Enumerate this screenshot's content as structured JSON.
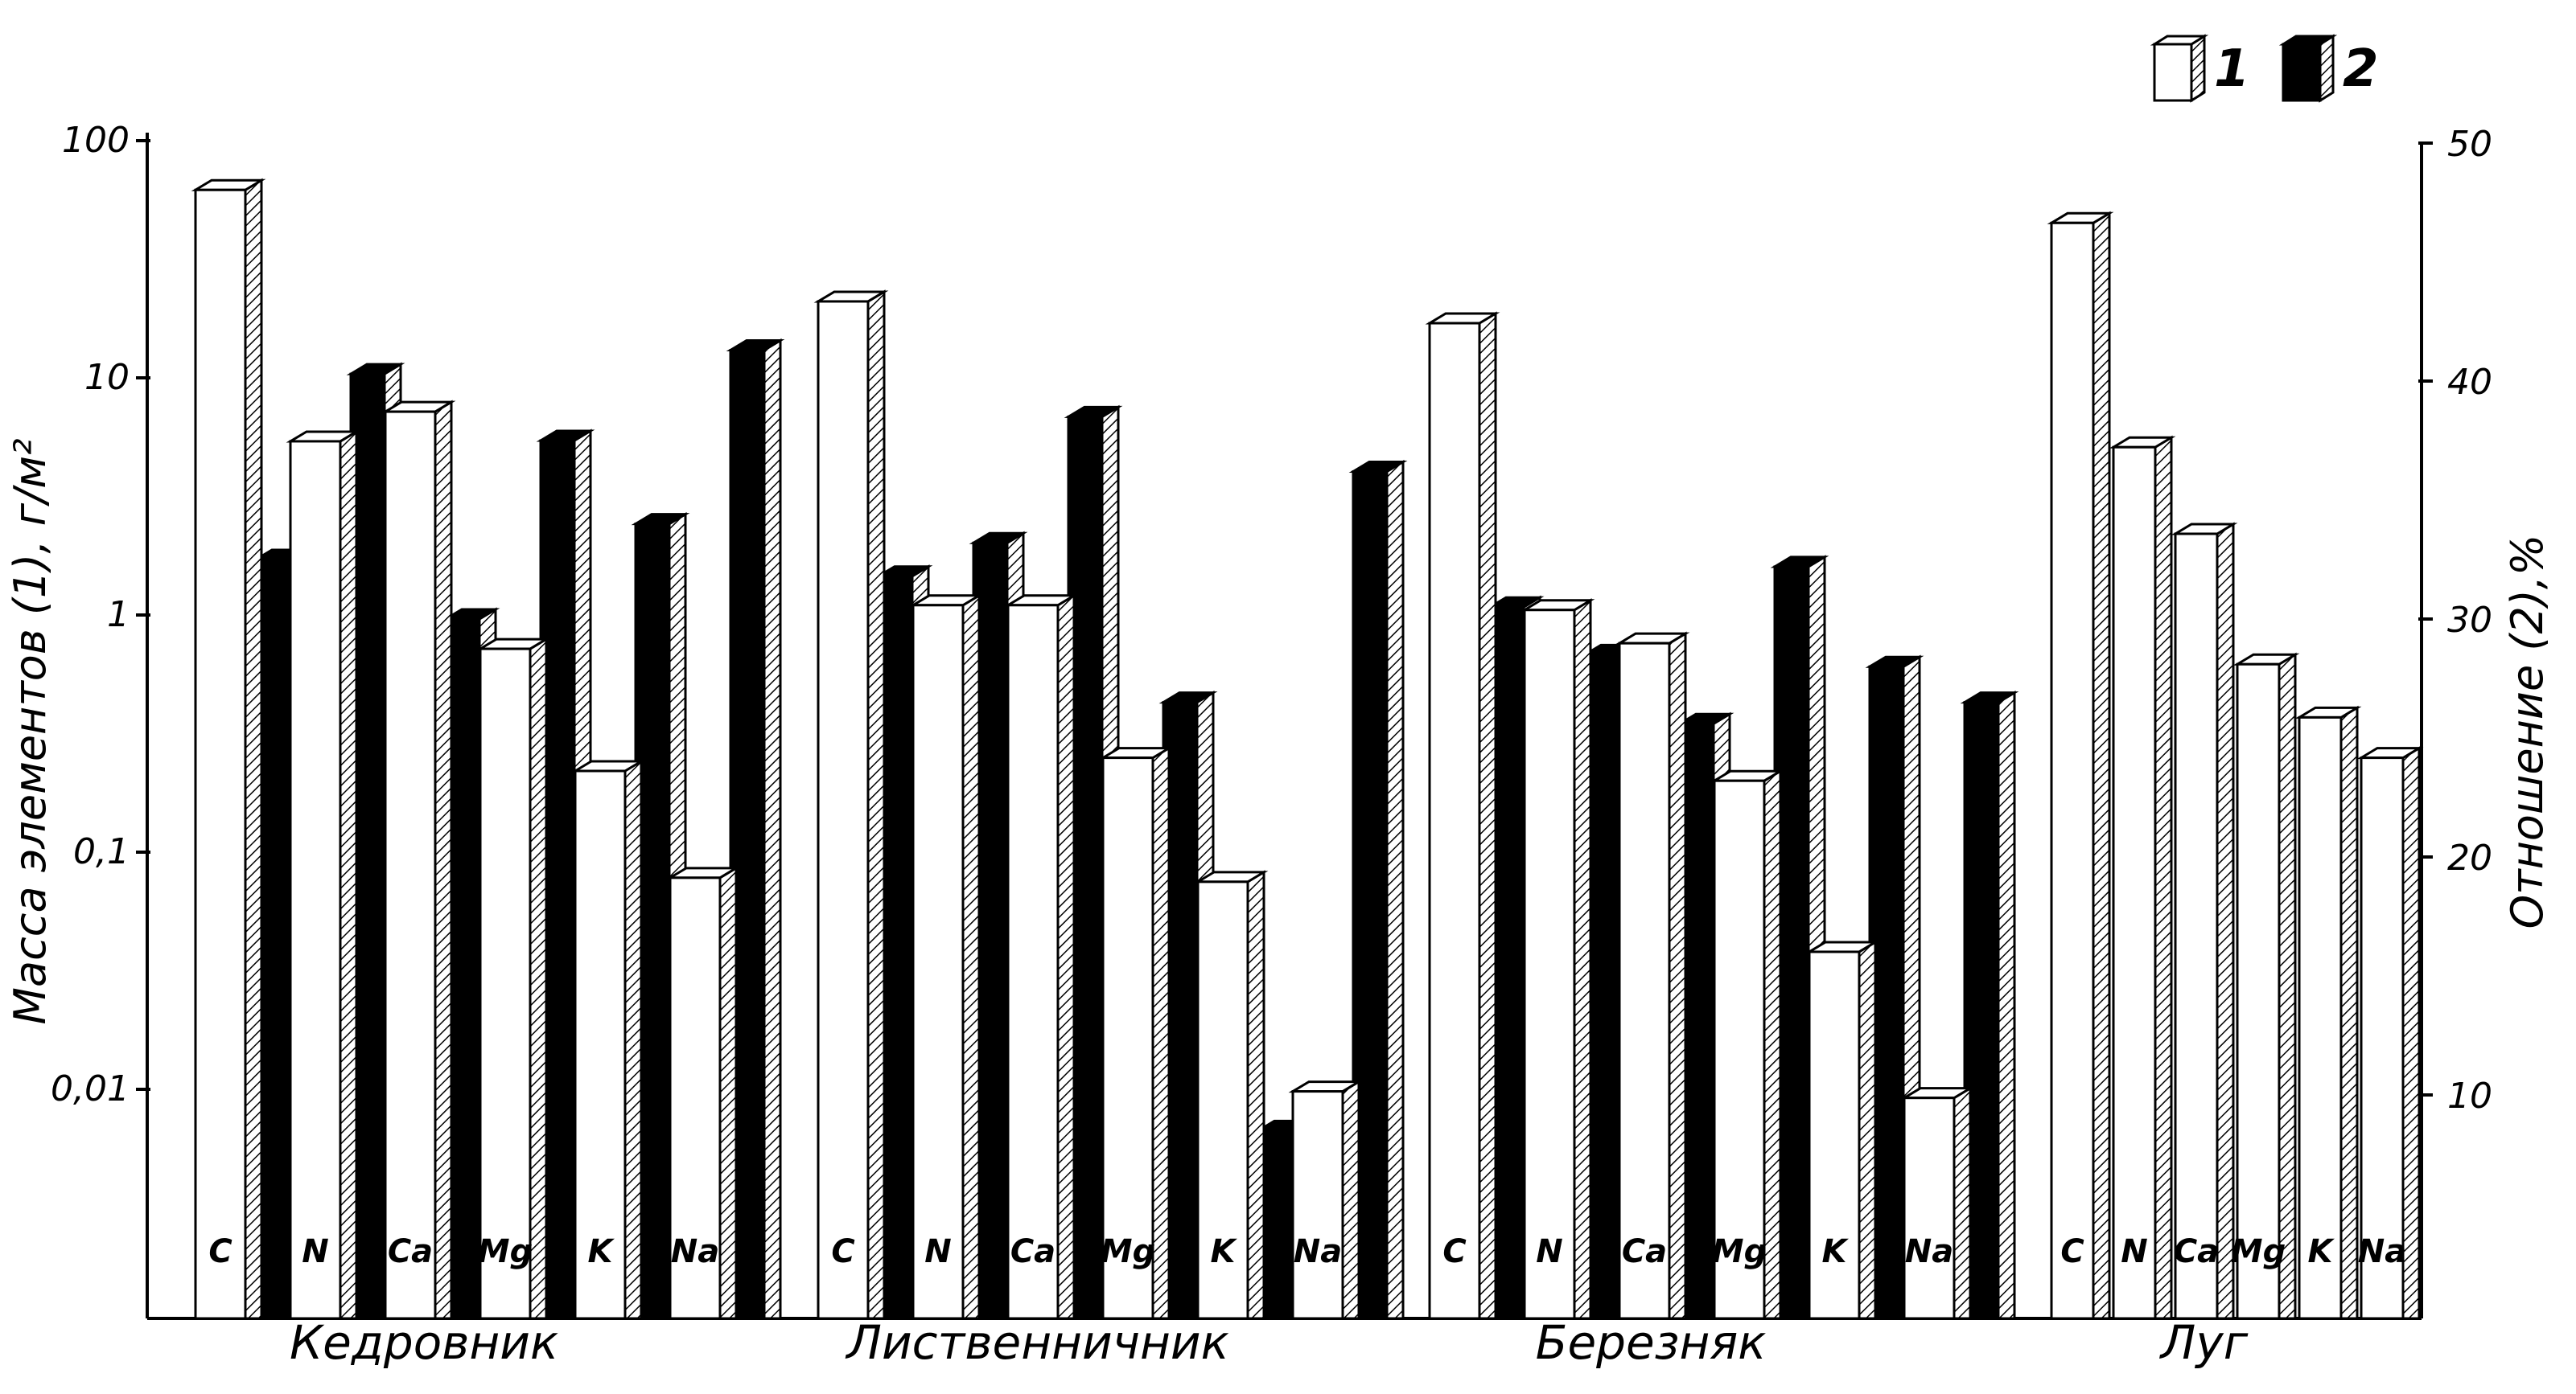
{
  "chart_data": {
    "type": "bar",
    "left_axis": {
      "label": "Масса элементов (1), г/м²",
      "scale": "log",
      "ticks": [
        "0,01",
        "0,1",
        "1",
        "10",
        "100"
      ],
      "tick_values": [
        0.01,
        0.1,
        1,
        10,
        100
      ]
    },
    "right_axis": {
      "label": "Отношение (2),%",
      "ticks": [
        "10",
        "20",
        "30",
        "40",
        "50"
      ],
      "tick_values": [
        10,
        20,
        30,
        40,
        50
      ]
    },
    "legend": {
      "placement": "top-right",
      "items": [
        {
          "label": "1",
          "style": "white"
        },
        {
          "label": "2",
          "style": "black"
        }
      ]
    },
    "elements": [
      "C",
      "N",
      "Ca",
      "Mg",
      "K",
      "Na"
    ],
    "groups": [
      {
        "name": "Кедровник",
        "mass": [
          62,
          5.4,
          7.2,
          0.72,
          0.22,
          0.078
        ],
        "ratio": [
          32.5,
          40.3,
          30,
          37.5,
          34,
          41.3
        ]
      },
      {
        "name": "Лиственничник",
        "mass": [
          21,
          1.1,
          1.1,
          0.25,
          0.075,
          0.0098
        ],
        "ratio": [
          31.8,
          33.2,
          38.5,
          26.5,
          8.5,
          36.2
        ]
      },
      {
        "name": "Березняк",
        "mass": [
          17,
          1.05,
          0.76,
          0.2,
          0.038,
          0.0092
        ],
        "ratio": [
          30.5,
          28.5,
          25.6,
          32.2,
          28,
          26.5
        ]
      },
      {
        "name": "Луг",
        "mass": [
          45,
          5.1,
          2.2,
          0.62,
          0.37,
          0.25
        ],
        "ratio": []
      }
    ],
    "colors": {
      "series1": "#ffffff",
      "series2": "#000000",
      "outline": "#000000",
      "side": "#ffffff"
    }
  }
}
